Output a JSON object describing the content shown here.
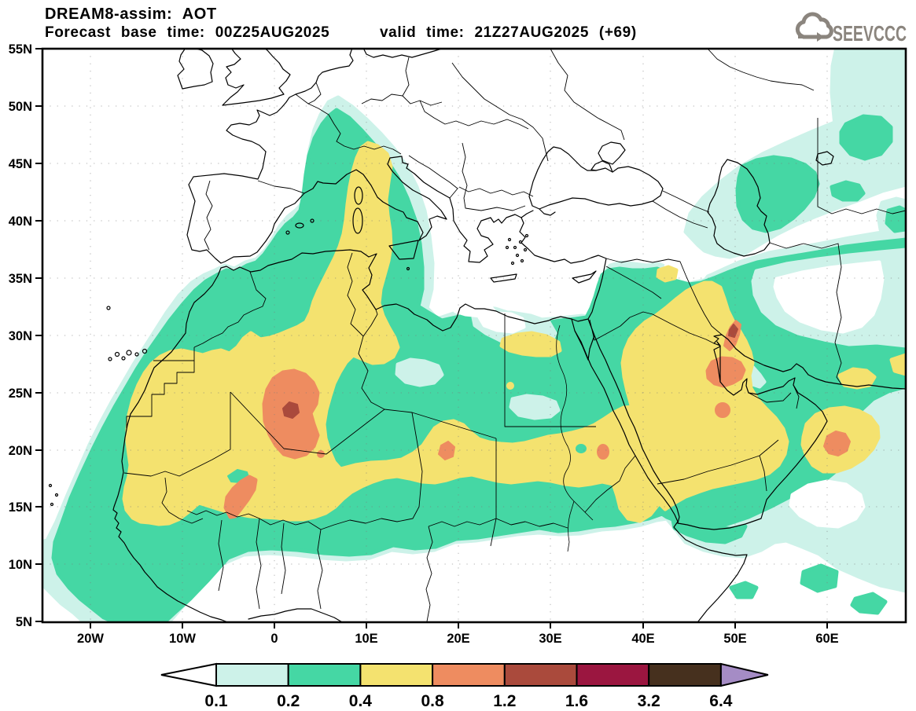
{
  "header": {
    "title": "DREAM8-assim: AOT",
    "forecast_base": "Forecast base time: 00Z25AUG2025",
    "valid_time": "valid time: 21Z27AUG2025 (+69)",
    "logo_text": "SEEVCCC"
  },
  "chart_data": {
    "type": "filled-contour-map",
    "model": "DREAM8-assim",
    "variable": "AOT (aerosol optical thickness)",
    "map_extent": {
      "lon_min": -25,
      "lon_max": 68,
      "lat_min": 5,
      "lat_max": 55
    },
    "x_ticks": [
      "20W",
      "10W",
      "0",
      "10E",
      "20E",
      "30E",
      "40E",
      "50E",
      "60E"
    ],
    "y_ticks": [
      "55N",
      "50N",
      "45N",
      "40N",
      "35N",
      "30N",
      "25N",
      "20N",
      "15N",
      "10N",
      "5N"
    ],
    "levels": [
      0.1,
      0.2,
      0.4,
      0.8,
      1.2,
      1.6,
      3.2,
      6.4
    ],
    "grid": "dotted graticule: 5-degree latitude, 10-degree longitude",
    "palette": {
      "under": "#ffffff",
      "0.1": "#cdf2e9",
      "0.2": "#45d7a4",
      "0.4": "#f4e26f",
      "0.8": "#ee8c60",
      "1.2": "#aa4a3c",
      "1.6": "#9b1640",
      "3.2": "#46301e",
      "over": "#a58cc5"
    },
    "features": [
      {
        "region": "central Sahara, Mali/Niger/Algeria border",
        "approx_location": "1E 23.5N",
        "aot": "0.8-1.2 plume with 1.2-1.6 core"
      },
      {
        "region": "southern Mali / Burkina Faso",
        "approx_location": "4W 16N",
        "aot": "0.8-1.2"
      },
      {
        "region": "Tibesti, northern Chad",
        "approx_location": "17E 20N",
        "aot": "0.8-1.2 spot"
      },
      {
        "region": "Red Sea coast of Sudan",
        "approx_location": "36E 20N",
        "aot": "0.8-1.2 spot"
      },
      {
        "region": "northeastern Saudi Arabia",
        "approx_location": "46E 27N",
        "aot": "0.8-1.2"
      },
      {
        "region": "Kuwait / southern Iraq",
        "approx_location": "48E 30N",
        "aot": "0.8-1.2 with 1.2-1.6 core"
      },
      {
        "region": "central Saudi Arabia",
        "approx_location": "47E 23N",
        "aot": "0.8-1.2 spot"
      },
      {
        "region": "eastern Oman",
        "approx_location": "57E 22N",
        "aot": "0.8-1.2"
      },
      {
        "region": "Sahara-Sahel belt from Mauritania to the Red Sea",
        "aot": "0.4-0.8 band"
      },
      {
        "region": "dust plume across Tunisia, Sardinia, Italy into central Europe",
        "aot": "0.2-0.8"
      },
      {
        "region": "Arabian Peninsula interior",
        "aot": "0.4-0.8"
      },
      {
        "region": "Caspian Sea area",
        "aot": "0.2-0.4 blob"
      },
      {
        "region": "Gulf of Aden / Somali coast",
        "aot": "0.1-0.4 band"
      }
    ]
  },
  "colorbar": {
    "labels": [
      "0.1",
      "0.2",
      "0.4",
      "0.8",
      "1.2",
      "1.6",
      "3.2",
      "6.4"
    ],
    "colors": [
      "#cdf2e9",
      "#45d7a4",
      "#f4e26f",
      "#ee8c60",
      "#aa4a3c",
      "#9b1640",
      "#46301e"
    ],
    "under_color": "#ffffff",
    "over_color": "#a58cc5"
  }
}
